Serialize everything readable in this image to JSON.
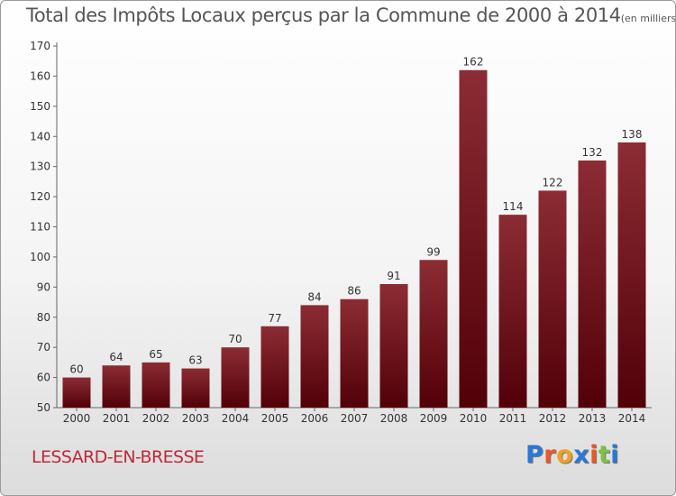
{
  "title": "Total des Impôts Locaux perçus par la Commune de 2000 à 2014",
  "title_unit": "(en milliers d'€)",
  "commune": "LESSARD-EN-BRESSE",
  "logo": {
    "letters": [
      "P",
      "r",
      "o",
      "x",
      "i",
      "t",
      "i"
    ],
    "colors": [
      "#2b78d4",
      "#e8592a",
      "#f0a020",
      "#2b78d4",
      "#e8592a",
      "#7cc242",
      "#2b78d4"
    ]
  },
  "colors": {
    "bar_top": "#8c2c34",
    "bar_bottom": "#520008",
    "commune": "#c0283a"
  },
  "chart_data": {
    "type": "bar",
    "title": "Total des Impôts Locaux perçus par la Commune de 2000 à 2014",
    "xlabel": "",
    "ylabel": "",
    "categories": [
      "2000",
      "2001",
      "2002",
      "2003",
      "2004",
      "2005",
      "2006",
      "2007",
      "2008",
      "2009",
      "2010",
      "2011",
      "2012",
      "2013",
      "2014"
    ],
    "values": [
      60,
      64,
      65,
      63,
      70,
      77,
      84,
      86,
      91,
      99,
      162,
      114,
      122,
      132,
      138
    ],
    "ylim": [
      50,
      170
    ],
    "yticks": [
      50,
      60,
      70,
      80,
      90,
      100,
      110,
      120,
      130,
      140,
      150,
      160,
      170
    ],
    "grid": false,
    "legend": "none"
  }
}
